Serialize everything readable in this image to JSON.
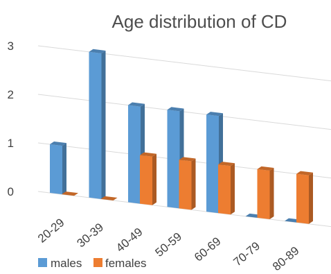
{
  "chart_data": {
    "type": "bar",
    "title": "Age distribution of CD",
    "categories": [
      "20-29",
      "30-39",
      "40-49",
      "50-59",
      "60-69",
      "70-79",
      "80-89"
    ],
    "series": [
      {
        "name": "males",
        "values": [
          1,
          3,
          2,
          2,
          2,
          0,
          0
        ]
      },
      {
        "name": "females",
        "values": [
          0,
          0,
          1,
          1,
          1,
          1,
          1
        ]
      }
    ],
    "ylim": [
      0,
      3
    ],
    "yticks": [
      "0",
      "1",
      "2",
      "3"
    ],
    "grid": true,
    "legend": "bottom-left",
    "colors": {
      "males": "#5b9bd5",
      "females": "#ed7d31",
      "grid": "#d9d9d9"
    }
  }
}
